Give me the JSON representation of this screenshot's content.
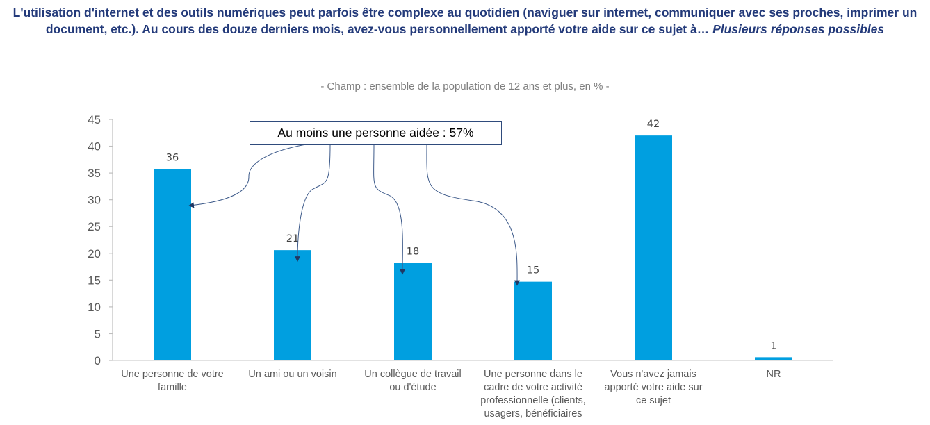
{
  "title": {
    "main": "L'utilisation d'internet et des outils numériques peut parfois être complexe au quotidien (naviguer sur internet, communiquer avec ses proches, imprimer un document, etc.). Au cours des douze derniers mois, avez-vous personnellement apporté votre aide sur ce sujet à…",
    "italic_suffix": "Plusieurs réponses possibles"
  },
  "subtitle": "- Champ : ensemble de la population de 12 ans et plus, en % -",
  "annotation": {
    "text": "Au moins une personne aidée : 57%",
    "points_to_categories": [
      0,
      1,
      2,
      3
    ]
  },
  "colors": {
    "bar": "#009fe0",
    "title": "#233a7a",
    "annotation_border": "#2f4b7c",
    "arrow": "#3d5a8a",
    "axis": "#bfbfbf",
    "text": "#595959"
  },
  "chart_data": {
    "type": "bar",
    "title": "L'utilisation d'internet et des outils numériques peut parfois être complexe au quotidien (naviguer sur internet, communiquer avec ses proches, imprimer un document, etc.). Au cours des douze derniers mois, avez-vous personnellement apporté votre aide sur ce sujet à… Plusieurs réponses possibles",
    "subtitle": "- Champ : ensemble de la population de 12 ans et plus, en % -",
    "categories": [
      "Une personne de votre famille",
      "Un ami ou un voisin",
      "Un collègue de travail ou d'étude",
      "Une personne dans le cadre de votre activité professionnelle (clients, usagers, bénéficiaires",
      "Vous n'avez jamais apporté votre aide sur ce sujet",
      "NR"
    ],
    "category_lines": [
      [
        "Une personne de votre",
        "famille"
      ],
      [
        "Un ami ou un voisin"
      ],
      [
        "Un collègue de travail",
        "ou d'étude"
      ],
      [
        "Une personne dans le",
        "cadre de votre activité",
        "professionnelle (clients,",
        "usagers, bénéficiaires"
      ],
      [
        "Vous n'avez jamais",
        "apporté votre aide sur",
        "ce sujet"
      ],
      [
        "NR"
      ]
    ],
    "values": [
      35.7,
      20.6,
      18.2,
      14.7,
      42,
      0.6
    ],
    "data_labels": [
      "36",
      "21",
      "18",
      "15",
      "42",
      "1"
    ],
    "xlabel": "",
    "ylabel": "",
    "ylim": [
      0,
      45
    ],
    "yticks": [
      0,
      5,
      10,
      15,
      20,
      25,
      30,
      35,
      40,
      45
    ],
    "grid": false,
    "legend": "none",
    "annotations": [
      "Au moins une personne aidée : 57%"
    ]
  }
}
